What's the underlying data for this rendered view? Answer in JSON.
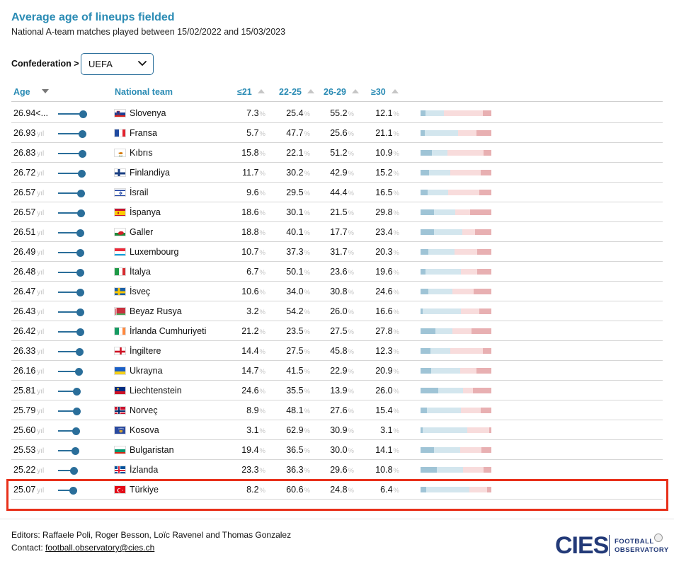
{
  "page": {
    "title": "Average age of lineups fielded",
    "subtitle": "National A-team matches played between 15/02/2022 and 15/03/2023"
  },
  "filter": {
    "label": "Confederation >",
    "selected": "UEFA"
  },
  "columns": {
    "age": "Age",
    "team": "National team",
    "u21": "≤21",
    "a22": "22-25",
    "a26": "26-29",
    "o30": "≥30"
  },
  "units": {
    "age": "yıl",
    "pct": "%"
  },
  "colors": {
    "accent": "#2a8bb4",
    "slider": "#2a6e9a",
    "bar_u21": "#9fc4d6",
    "bar_22": "#d3e6ee",
    "bar_26": "#f8dcdc",
    "bar_30": "#e8b0b2",
    "highlight": "#e8301a"
  },
  "rows": [
    {
      "age": "26.94<...",
      "age_value": 26.94,
      "team": "Slovenya",
      "flag": "slovenia-flag",
      "u21": "7.3",
      "a22": "25.4",
      "a26": "55.2",
      "o30": "12.1"
    },
    {
      "age": "26.93",
      "age_value": 26.93,
      "team": "Fransa",
      "flag": "france-flag",
      "u21": "5.7",
      "a22": "47.7",
      "a26": "25.6",
      "o30": "21.1"
    },
    {
      "age": "26.83",
      "age_value": 26.83,
      "team": "Kıbrıs",
      "flag": "cyprus-flag",
      "u21": "15.8",
      "a22": "22.1",
      "a26": "51.2",
      "o30": "10.9"
    },
    {
      "age": "26.72",
      "age_value": 26.72,
      "team": "Finlandiya",
      "flag": "finland-flag",
      "u21": "11.7",
      "a22": "30.2",
      "a26": "42.9",
      "o30": "15.2"
    },
    {
      "age": "26.57",
      "age_value": 26.57,
      "team": "İsrail",
      "flag": "israel-flag",
      "u21": "9.6",
      "a22": "29.5",
      "a26": "44.4",
      "o30": "16.5"
    },
    {
      "age": "26.57",
      "age_value": 26.57,
      "team": "İspanya",
      "flag": "spain-flag",
      "u21": "18.6",
      "a22": "30.1",
      "a26": "21.5",
      "o30": "29.8"
    },
    {
      "age": "26.51",
      "age_value": 26.51,
      "team": "Galler",
      "flag": "wales-flag",
      "u21": "18.8",
      "a22": "40.1",
      "a26": "17.7",
      "o30": "23.4"
    },
    {
      "age": "26.49",
      "age_value": 26.49,
      "team": "Luxembourg",
      "flag": "luxembourg-flag",
      "u21": "10.7",
      "a22": "37.3",
      "a26": "31.7",
      "o30": "20.3"
    },
    {
      "age": "26.48",
      "age_value": 26.48,
      "team": "İtalya",
      "flag": "italy-flag",
      "u21": "6.7",
      "a22": "50.1",
      "a26": "23.6",
      "o30": "19.6"
    },
    {
      "age": "26.47",
      "age_value": 26.47,
      "team": "İsveç",
      "flag": "sweden-flag",
      "u21": "10.6",
      "a22": "34.0",
      "a26": "30.8",
      "o30": "24.6"
    },
    {
      "age": "26.43",
      "age_value": 26.43,
      "team": "Beyaz Rusya",
      "flag": "belarus-flag",
      "u21": "3.2",
      "a22": "54.2",
      "a26": "26.0",
      "o30": "16.6"
    },
    {
      "age": "26.42",
      "age_value": 26.42,
      "team": "İrlanda Cumhuriyeti",
      "flag": "ireland-flag",
      "u21": "21.2",
      "a22": "23.5",
      "a26": "27.5",
      "o30": "27.8"
    },
    {
      "age": "26.33",
      "age_value": 26.33,
      "team": "İngiltere",
      "flag": "england-flag",
      "u21": "14.4",
      "a22": "27.5",
      "a26": "45.8",
      "o30": "12.3"
    },
    {
      "age": "26.16",
      "age_value": 26.16,
      "team": "Ukrayna",
      "flag": "ukraine-flag",
      "u21": "14.7",
      "a22": "41.5",
      "a26": "22.9",
      "o30": "20.9"
    },
    {
      "age": "25.81",
      "age_value": 25.81,
      "team": "Liechtenstein",
      "flag": "liechtenstein-flag",
      "u21": "24.6",
      "a22": "35.5",
      "a26": "13.9",
      "o30": "26.0"
    },
    {
      "age": "25.79",
      "age_value": 25.79,
      "team": "Norveç",
      "flag": "norway-flag",
      "u21": "8.9",
      "a22": "48.1",
      "a26": "27.6",
      "o30": "15.4"
    },
    {
      "age": "25.60",
      "age_value": 25.6,
      "team": "Kosova",
      "flag": "kosovo-flag",
      "u21": "3.1",
      "a22": "62.9",
      "a26": "30.9",
      "o30": "3.1"
    },
    {
      "age": "25.53",
      "age_value": 25.53,
      "team": "Bulgaristan",
      "flag": "bulgaria-flag",
      "u21": "19.4",
      "a22": "36.5",
      "a26": "30.0",
      "o30": "14.1"
    },
    {
      "age": "25.22",
      "age_value": 25.22,
      "team": "İzlanda",
      "flag": "iceland-flag",
      "u21": "23.3",
      "a22": "36.3",
      "a26": "29.6",
      "o30": "10.8"
    },
    {
      "age": "25.07",
      "age_value": 25.07,
      "team": "Türkiye",
      "flag": "turkey-flag",
      "u21": "8.2",
      "a22": "60.6",
      "a26": "24.8",
      "o30": "6.4"
    }
  ],
  "footer": {
    "editors": "Editors: Raffaele Poli, Roger Besson, Loïc Ravenel and Thomas Gonzalez",
    "contact_label": "Contact:",
    "contact_email": "football.observatory@cies.ch",
    "logo_text": "CIES",
    "logo_sub1": "FOOTBALL",
    "logo_sub2": "OBSERVATORY"
  }
}
